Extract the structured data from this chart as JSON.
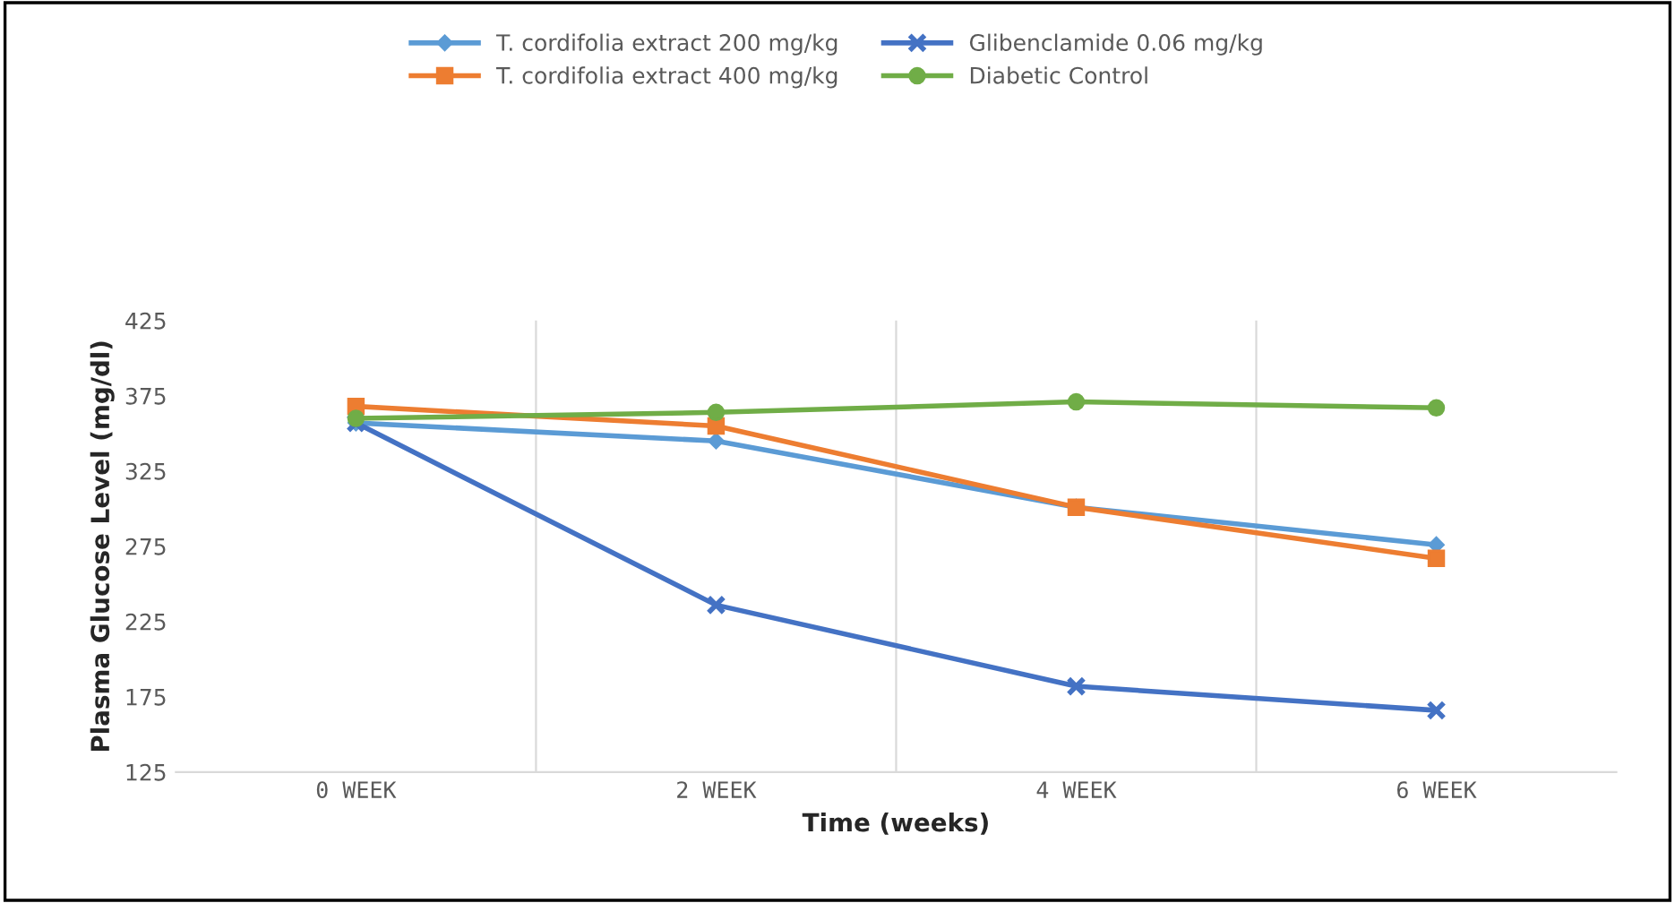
{
  "chart_data": {
    "type": "line",
    "xlabel": "Time (weeks)",
    "ylabel": "Plasma Glucose Level (mg/dl)",
    "categories": [
      "0 WEEK",
      "2 WEEK",
      "4 WEEK",
      "6 WEEK"
    ],
    "series": [
      {
        "name": "T. cordifolia extract 200 mg/kg",
        "color": "#5b9bd5",
        "marker": "diamond",
        "values": [
          357,
          345,
          301,
          276
        ]
      },
      {
        "name": "T. cordifolia extract 400 mg/kg",
        "color": "#ed7d31",
        "marker": "square",
        "values": [
          368,
          355,
          301,
          267
        ]
      },
      {
        "name": "Glibenclamide 0.06 mg/kg",
        "color": "#4472c4",
        "marker": "cross",
        "values": [
          357,
          236,
          182,
          166
        ]
      },
      {
        "name": "Diabetic Control",
        "color": "#70ad47",
        "marker": "circle",
        "values": [
          360,
          364,
          371,
          367
        ]
      }
    ],
    "ylim": [
      125,
      425
    ],
    "yticks": [
      125,
      175,
      225,
      275,
      325,
      375,
      425
    ],
    "grid": "x",
    "legend": "top"
  }
}
